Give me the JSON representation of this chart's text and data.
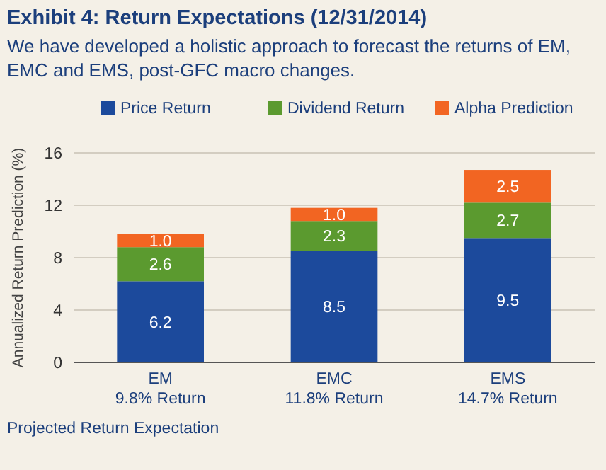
{
  "chart_data": {
    "type": "bar",
    "title": "Exhibit 4: Return Expectations (12/31/2014)",
    "subtitle": "We have developed a holistic approach to forecast the returns of EM, EMC and EMS, post-GFC macro changes.",
    "ylabel": "Annualized Return Prediction (%)",
    "categories": [
      "EM\n9.8% Return",
      "EMC\n11.8% Return",
      "EMS\n14.7% Return"
    ],
    "stacked": true,
    "series": [
      {
        "name": "Price Return",
        "color": "#1c4a9c",
        "values": [
          6.2,
          8.5,
          9.5
        ],
        "value_labels": [
          "6.2",
          "8.5",
          "9.5"
        ]
      },
      {
        "name": "Dividend Return",
        "color": "#5b9a2f",
        "values": [
          2.6,
          2.3,
          2.7
        ],
        "value_labels": [
          "2.6",
          "2.3",
          "2.7"
        ]
      },
      {
        "name": "Alpha Prediction",
        "color": "#f26522",
        "values": [
          1.0,
          1.0,
          2.5
        ],
        "value_labels": [
          "1.0",
          "1.0",
          "2.5"
        ]
      }
    ],
    "ylim": [
      0,
      16
    ],
    "yticks": [
      0,
      4,
      8,
      12,
      16
    ],
    "grid": "y",
    "legend": "top",
    "annotations": [
      "Projected Return Expectation"
    ]
  }
}
